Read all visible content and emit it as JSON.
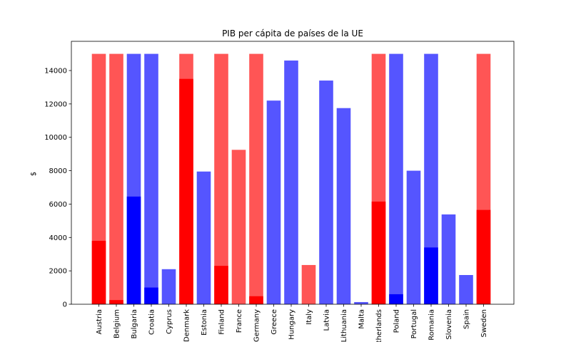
{
  "chart_data": {
    "type": "bar",
    "title": "PIB per cápita de países de la UE",
    "xlabel": "",
    "ylabel": "$",
    "ylim": [
      0,
      15000
    ],
    "yticks": [
      0,
      2000,
      4000,
      6000,
      8000,
      10000,
      12000,
      14000
    ],
    "grid": false,
    "categories": [
      "Austria",
      "Belgium",
      "Bulgaria",
      "Croatia",
      "Cyprus",
      "Denmark",
      "Estonia",
      "Finland",
      "France",
      "Germany",
      "Greece",
      "Hungary",
      "Italy",
      "Latvia",
      "Lithuania",
      "Malta",
      "Netherlands",
      "Poland",
      "Portugal",
      "Romania",
      "Slovenia",
      "Spain",
      "Sweden"
    ],
    "bars": [
      {
        "total": 15000,
        "base": 3800,
        "color": "red"
      },
      {
        "total": 15000,
        "base": 250,
        "color": "red"
      },
      {
        "total": 15000,
        "base": 6450,
        "color": "blue"
      },
      {
        "total": 15000,
        "base": 1000,
        "color": "blue"
      },
      {
        "total": 2100,
        "base": 0,
        "color": "blue"
      },
      {
        "total": 15000,
        "base": 13500,
        "color": "red"
      },
      {
        "total": 7950,
        "base": 0,
        "color": "blue"
      },
      {
        "total": 15000,
        "base": 2300,
        "color": "red"
      },
      {
        "total": 9250,
        "base": 0,
        "color": "red"
      },
      {
        "total": 15000,
        "base": 480,
        "color": "red"
      },
      {
        "total": 12200,
        "base": 0,
        "color": "blue"
      },
      {
        "total": 14600,
        "base": 0,
        "color": "blue"
      },
      {
        "total": 2350,
        "base": 0,
        "color": "red"
      },
      {
        "total": 13400,
        "base": 0,
        "color": "blue"
      },
      {
        "total": 11750,
        "base": 0,
        "color": "blue"
      },
      {
        "total": 130,
        "base": 0,
        "color": "blue"
      },
      {
        "total": 15000,
        "base": 6150,
        "color": "red"
      },
      {
        "total": 15000,
        "base": 600,
        "color": "blue"
      },
      {
        "total": 8000,
        "base": 0,
        "color": "blue"
      },
      {
        "total": 15000,
        "base": 3400,
        "color": "blue"
      },
      {
        "total": 5380,
        "base": 0,
        "color": "blue"
      },
      {
        "total": 1750,
        "base": 0,
        "color": "blue"
      },
      {
        "total": 15000,
        "base": 5650,
        "color": "red"
      }
    ],
    "colors": {
      "red_solid": "#ff0000",
      "red_light": "#ff5555",
      "blue_solid": "#0000ff",
      "blue_light": "#5555ff"
    }
  }
}
